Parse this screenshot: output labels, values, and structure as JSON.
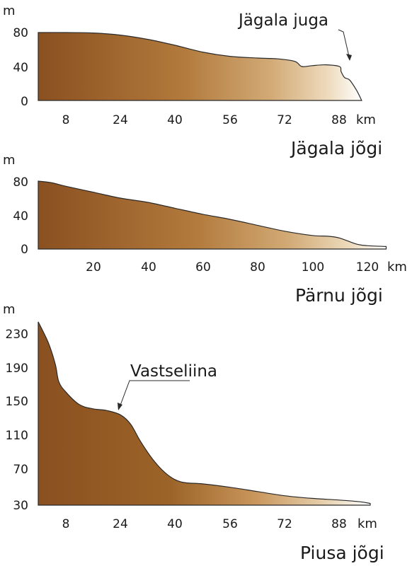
{
  "chart_data": [
    {
      "type": "area",
      "title": "Jägala jõgi",
      "ylabel": "m",
      "xlabel": "km",
      "x_ticks": [
        8,
        24,
        40,
        56,
        72,
        88
      ],
      "y_ticks": [
        0,
        40,
        80
      ],
      "xlim": [
        0,
        95
      ],
      "ylim": [
        0,
        80
      ],
      "series": [
        {
          "x": [
            0,
            8,
            16,
            24,
            32,
            40,
            48,
            56,
            64,
            70,
            75,
            77,
            80,
            84,
            88,
            88.5,
            89.5,
            91,
            93,
            94.5
          ],
          "y": [
            80,
            80,
            79.5,
            77,
            72,
            65,
            57,
            52,
            50,
            49,
            46,
            40,
            41,
            42,
            40,
            34,
            27,
            24,
            12,
            0
          ]
        }
      ],
      "annotations": [
        {
          "text": "Jägala juga",
          "x": 89,
          "y": 42
        }
      ]
    },
    {
      "type": "area",
      "title": "Pärnu jõgi",
      "ylabel": "m",
      "xlabel": "km",
      "x_ticks": [
        20,
        40,
        60,
        80,
        100,
        120
      ],
      "y_ticks": [
        0,
        40,
        80
      ],
      "xlim": [
        0,
        127
      ],
      "ylim": [
        0,
        80
      ],
      "series": [
        {
          "x": [
            0,
            5,
            10,
            20,
            30,
            40,
            50,
            60,
            70,
            80,
            90,
            100,
            106,
            110,
            116,
            120,
            127
          ],
          "y": [
            80,
            78,
            74,
            67,
            60,
            55,
            48,
            41,
            35,
            28,
            21,
            16,
            15,
            13,
            6,
            4,
            3
          ]
        }
      ],
      "annotations": []
    },
    {
      "type": "area",
      "title": "Piusa jõgi",
      "ylabel": "m",
      "xlabel": "km",
      "x_ticks": [
        8,
        24,
        40,
        56,
        72,
        88
      ],
      "y_ticks": [
        30,
        70,
        110,
        150,
        190,
        230
      ],
      "xlim": [
        0,
        97
      ],
      "ylim": [
        30,
        230
      ],
      "series": [
        {
          "x": [
            0,
            3,
            5,
            6,
            8,
            12,
            16,
            20,
            24,
            27,
            30,
            34,
            38,
            42,
            48,
            56,
            64,
            72,
            80,
            88,
            94,
            97
          ],
          "y": [
            245,
            220,
            195,
            175,
            163,
            148,
            143,
            141,
            136,
            125,
            104,
            81,
            65,
            57,
            55,
            51,
            46,
            41,
            38,
            36,
            34,
            32
          ]
        }
      ],
      "annotations": [
        {
          "text": "Vastseliina",
          "x": 23.5,
          "y": 138
        }
      ]
    }
  ]
}
